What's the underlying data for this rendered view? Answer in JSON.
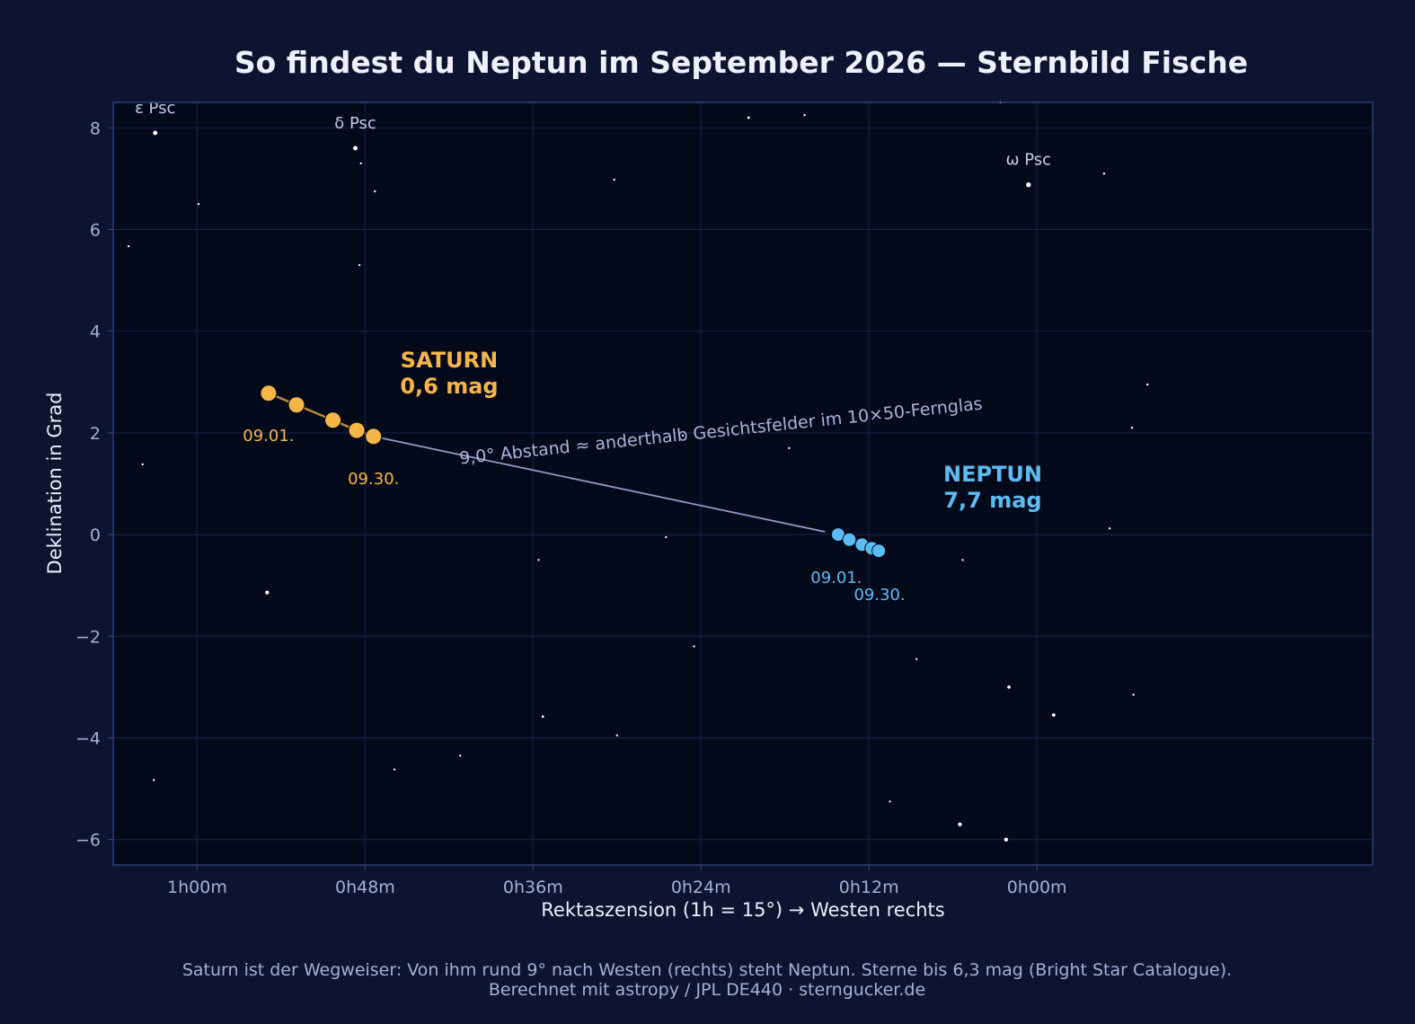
{
  "chart_data": {
    "type": "scatter",
    "title": "So findest du Neptun im September 2026 — Sternbild Fische",
    "xlabel": "Rektaszension  (1h = 15°)  →  Westen rechts",
    "ylabel": "Deklination in Grad",
    "x_unit": "RA minutes, decreasing to the right",
    "xlim": [
      66,
      -24
    ],
    "ylim": [
      -6.5,
      8.5
    ],
    "x_ticks": [
      {
        "value": 60,
        "label": "1h00m"
      },
      {
        "value": 48,
        "label": "0h48m"
      },
      {
        "value": 36,
        "label": "0h36m"
      },
      {
        "value": 24,
        "label": "0h24m"
      },
      {
        "value": 12,
        "label": "0h12m"
      },
      {
        "value": 0,
        "label": "0h00m"
      }
    ],
    "y_ticks": [
      {
        "value": 8,
        "label": "8"
      },
      {
        "value": 6,
        "label": "6"
      },
      {
        "value": 4,
        "label": "4"
      },
      {
        "value": 2,
        "label": "2"
      },
      {
        "value": 0,
        "label": "0"
      },
      {
        "value": -2,
        "label": "−2"
      },
      {
        "value": -4,
        "label": "−4"
      },
      {
        "value": -6,
        "label": "−6"
      }
    ],
    "grid": true,
    "colors": {
      "background": "#0c1430",
      "plot_background": "#050a1b",
      "frame": "#2c3a73",
      "grid": "#1a2350",
      "star": "#ffffff",
      "saturn": "#f6b548",
      "saturn_track": "#b98a3e",
      "neptune": "#5bbcf4",
      "separation_line": "#8f9bc8"
    },
    "stars": [
      {
        "ra": 63.0,
        "dec": 7.9,
        "size": 4
      },
      {
        "ra": 48.7,
        "dec": 7.6,
        "size": 4
      },
      {
        "ra": 0.6,
        "dec": 6.88,
        "size": 4.5
      },
      {
        "ra": 55.0,
        "dec": -1.14,
        "size": 3.5
      },
      {
        "ra": 5.5,
        "dec": -5.7,
        "size": 3.5
      },
      {
        "ra": 2.2,
        "dec": -6.0,
        "size": 3.5
      },
      {
        "ra": -1.2,
        "dec": -3.55,
        "size": 3
      },
      {
        "ra": 2.0,
        "dec": -3.0,
        "size": 2.8
      },
      {
        "ra": 59.9,
        "dec": 6.5,
        "size": 1.6
      },
      {
        "ra": 64.9,
        "dec": 5.67,
        "size": 1.6
      },
      {
        "ra": 48.3,
        "dec": 7.3,
        "size": 1.5
      },
      {
        "ra": 47.3,
        "dec": 6.75,
        "size": 1.6
      },
      {
        "ra": 48.4,
        "dec": 5.3,
        "size": 1.5
      },
      {
        "ra": 30.2,
        "dec": 6.98,
        "size": 1.6
      },
      {
        "ra": 20.6,
        "dec": 8.2,
        "size": 2
      },
      {
        "ra": 16.6,
        "dec": 8.25,
        "size": 1.6
      },
      {
        "ra": 2.6,
        "dec": 8.5,
        "size": 1.6
      },
      {
        "ra": -4.8,
        "dec": 7.1,
        "size": 1.6
      },
      {
        "ra": -7.9,
        "dec": 2.95,
        "size": 1.6
      },
      {
        "ra": -6.8,
        "dec": 2.1,
        "size": 1.6
      },
      {
        "ra": -5.2,
        "dec": 0.12,
        "size": 1.6
      },
      {
        "ra": -6.9,
        "dec": -3.15,
        "size": 1.6
      },
      {
        "ra": 63.9,
        "dec": 1.38,
        "size": 1.6
      },
      {
        "ra": 63.1,
        "dec": -4.83,
        "size": 1.6
      },
      {
        "ra": 45.9,
        "dec": -4.62,
        "size": 1.5
      },
      {
        "ra": 41.2,
        "dec": -4.35,
        "size": 1.5
      },
      {
        "ra": 35.3,
        "dec": -3.58,
        "size": 2
      },
      {
        "ra": 30.0,
        "dec": -3.95,
        "size": 1.5
      },
      {
        "ra": 35.6,
        "dec": -0.5,
        "size": 1.5
      },
      {
        "ra": 26.5,
        "dec": -0.05,
        "size": 1.5
      },
      {
        "ra": 25.3,
        "dec": 1.95,
        "size": 1.5
      },
      {
        "ra": 24.5,
        "dec": -2.2,
        "size": 1.5
      },
      {
        "ra": 17.7,
        "dec": 1.7,
        "size": 1.5
      },
      {
        "ra": 8.6,
        "dec": -2.45,
        "size": 1.5
      },
      {
        "ra": 5.3,
        "dec": -0.5,
        "size": 1.5
      },
      {
        "ra": 10.5,
        "dec": -5.25,
        "size": 1.5
      }
    ],
    "star_labels": [
      {
        "ra": 63.0,
        "dec": 7.9,
        "text": "ε Psc",
        "dx": 0,
        "dy": -22
      },
      {
        "ra": 48.7,
        "dec": 7.6,
        "text": "δ Psc",
        "dx": 0,
        "dy": -22
      },
      {
        "ra": 0.6,
        "dec": 6.88,
        "text": "ω Psc",
        "dx": 0,
        "dy": -22
      }
    ],
    "series": [
      {
        "name": "SATURN",
        "magnitude": "0,6 mag",
        "color": "#f6b548",
        "points": [
          {
            "ra": 54.9,
            "dec": 2.78
          },
          {
            "ra": 52.9,
            "dec": 2.55
          },
          {
            "ra": 50.3,
            "dec": 2.25
          },
          {
            "ra": 48.6,
            "dec": 2.05
          },
          {
            "ra": 47.4,
            "dec": 1.93
          }
        ],
        "start_label": "09.01.",
        "end_label": "09.30."
      },
      {
        "name": "NEPTUN",
        "magnitude": "7,7 mag",
        "color": "#5bbcf4",
        "points": [
          {
            "ra": 14.2,
            "dec": 0.0
          },
          {
            "ra": 13.4,
            "dec": -0.1
          },
          {
            "ra": 12.5,
            "dec": -0.2
          },
          {
            "ra": 11.8,
            "dec": -0.27
          },
          {
            "ra": 11.3,
            "dec": -0.32
          }
        ],
        "start_label": "09.01.",
        "end_label": "09.30."
      }
    ],
    "separation_annotation": "9,0° Abstand  ≈  anderthalb Gesichtsfelder im 10×50-Fernglas"
  },
  "footer": {
    "line1": "Saturn ist der Wegweiser: Von ihm rund 9° nach Westen (rechts) steht Neptun. Sterne bis 6,3 mag (Bright Star Catalogue).",
    "line2": "Berechnet mit astropy / JPL DE440 · sterngucker.de"
  }
}
